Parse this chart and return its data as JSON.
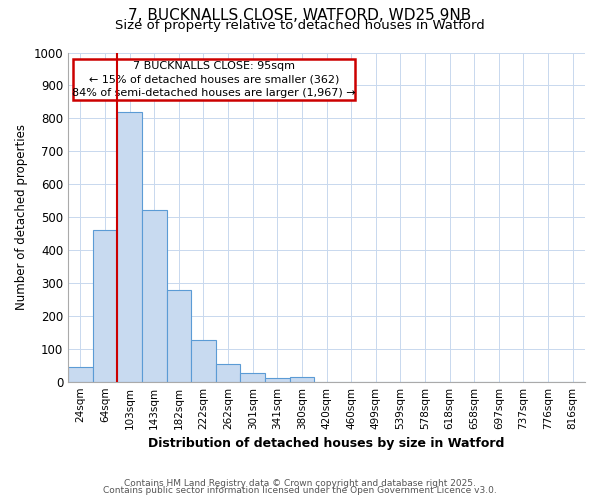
{
  "title_line1": "7, BUCKNALLS CLOSE, WATFORD, WD25 9NB",
  "title_line2": "Size of property relative to detached houses in Watford",
  "xlabel": "Distribution of detached houses by size in Watford",
  "ylabel": "Number of detached properties",
  "categories": [
    "24sqm",
    "64sqm",
    "103sqm",
    "143sqm",
    "182sqm",
    "222sqm",
    "262sqm",
    "301sqm",
    "341sqm",
    "380sqm",
    "420sqm",
    "460sqm",
    "499sqm",
    "539sqm",
    "578sqm",
    "618sqm",
    "658sqm",
    "697sqm",
    "737sqm",
    "776sqm",
    "816sqm"
  ],
  "values": [
    45,
    462,
    820,
    522,
    278,
    128,
    55,
    25,
    12,
    13,
    0,
    0,
    0,
    0,
    0,
    0,
    0,
    0,
    0,
    0,
    0
  ],
  "bar_color": "#c8daf0",
  "bar_edge_color": "#5b9bd5",
  "grid_color": "#c8d8ee",
  "background_color": "#ffffff",
  "annotation_box_color": "#cc0000",
  "property_line_color": "#cc0000",
  "annotation_line1": "7 BUCKNALLS CLOSE: 95sqm",
  "annotation_line2": "← 15% of detached houses are smaller (362)",
  "annotation_line3": "84% of semi-detached houses are larger (1,967) →",
  "ylim": [
    0,
    1000
  ],
  "yticks": [
    0,
    100,
    200,
    300,
    400,
    500,
    600,
    700,
    800,
    900,
    1000
  ],
  "property_line_x": 1.5,
  "footnote1": "Contains HM Land Registry data © Crown copyright and database right 2025.",
  "footnote2": "Contains public sector information licensed under the Open Government Licence v3.0."
}
